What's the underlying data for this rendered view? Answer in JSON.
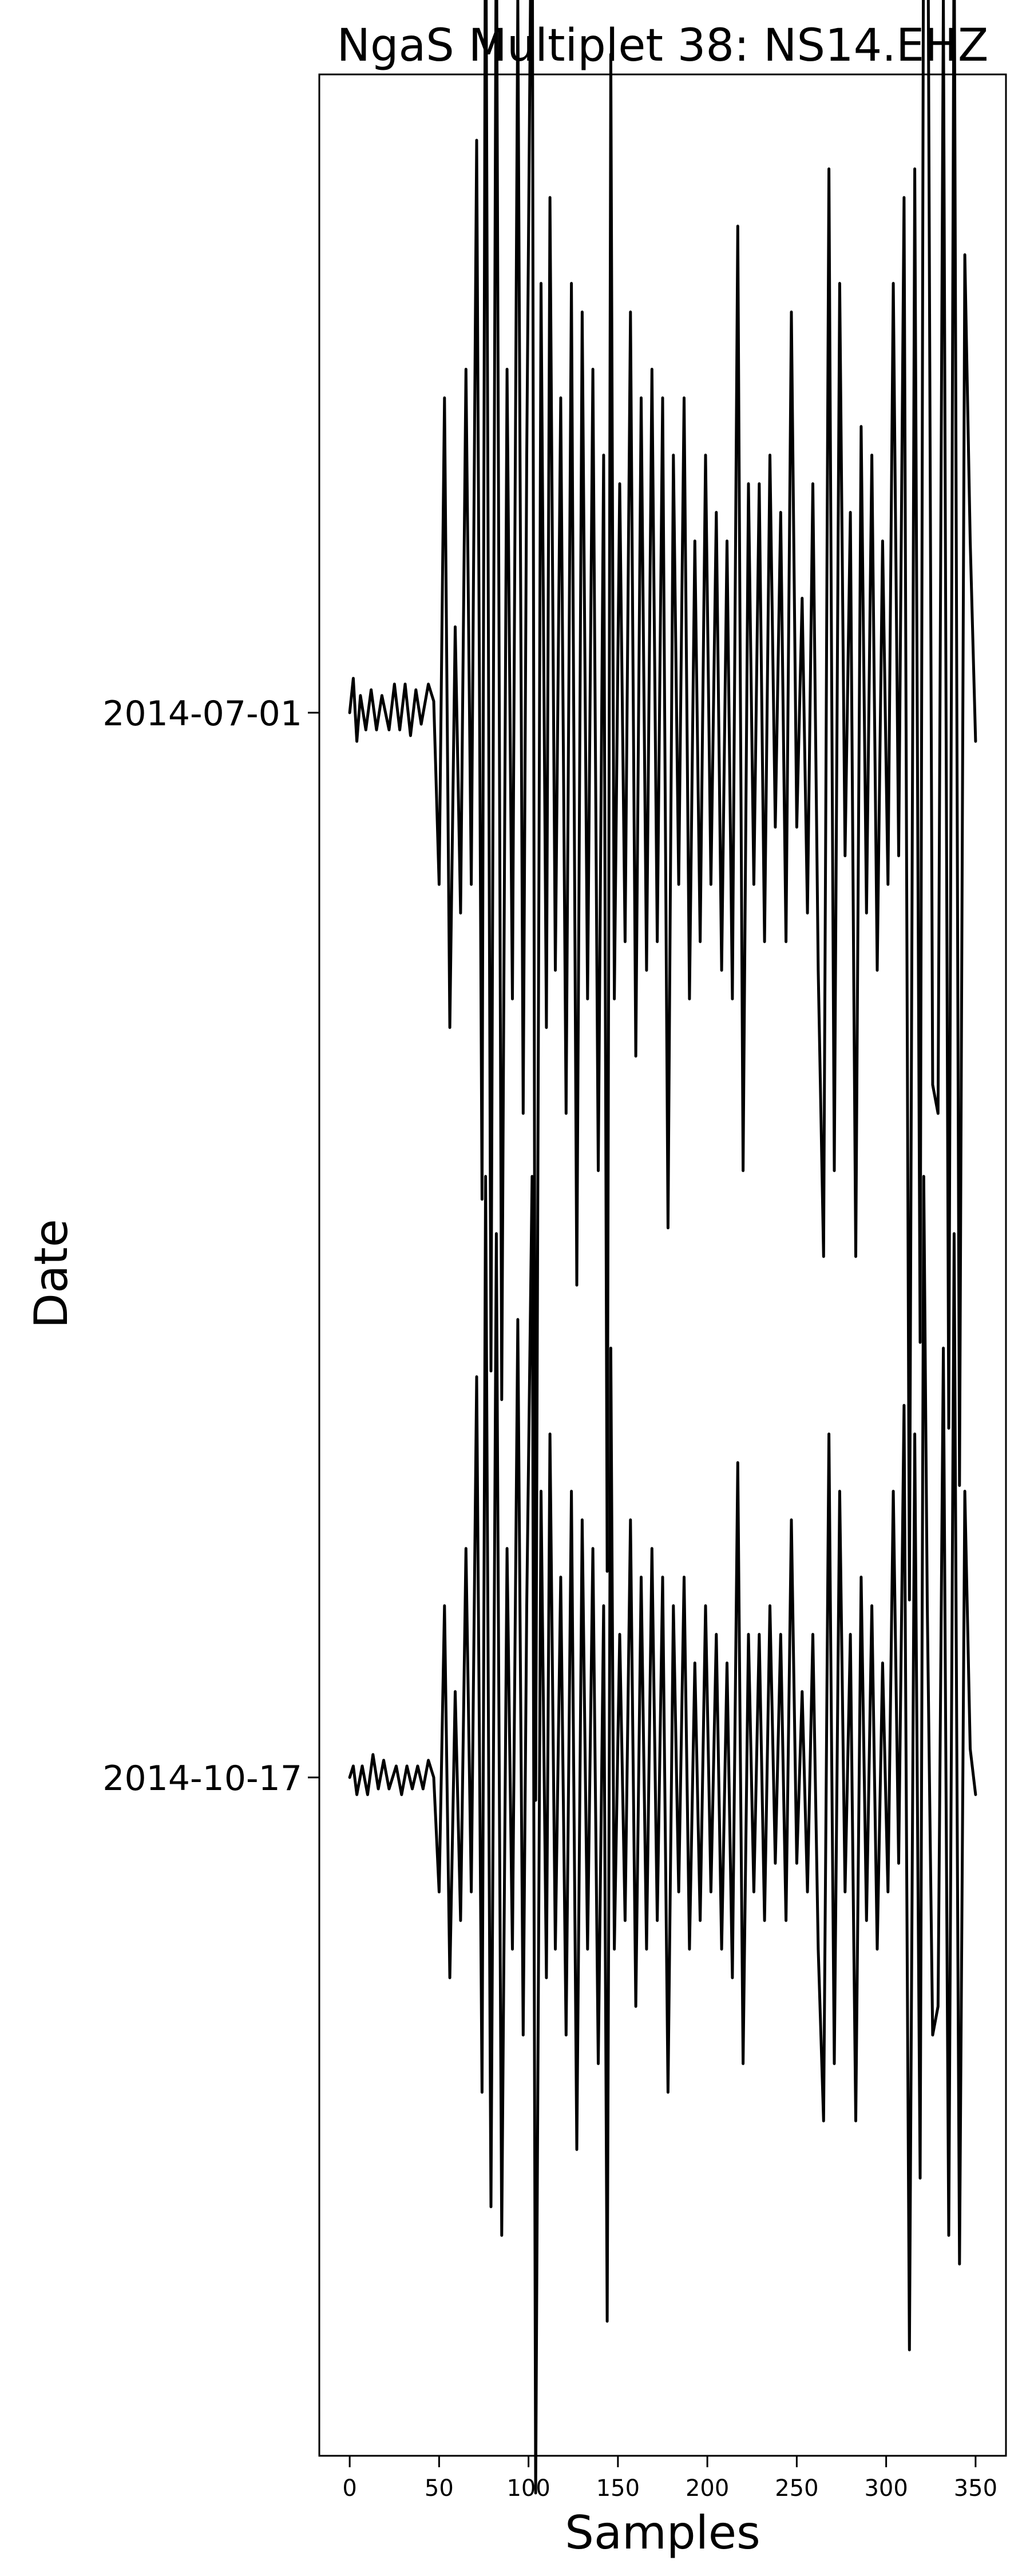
{
  "chart_data": {
    "type": "line",
    "title": "NgaS Multiplet 38: NS14.EHZ",
    "xlabel": "Samples",
    "ylabel": "Date",
    "xlim": [
      -17,
      367
    ],
    "xticks": [
      0,
      50,
      100,
      150,
      200,
      250,
      300,
      350
    ],
    "grid": false,
    "legend": "none",
    "line_color": "#000000",
    "series": [
      {
        "y_label": "2014-07-01",
        "n_samples": 350,
        "peaks": [
          [
            0,
            0.0
          ],
          [
            2,
            0.06
          ],
          [
            4,
            -0.05
          ],
          [
            6,
            0.03
          ],
          [
            9,
            -0.03
          ],
          [
            12,
            0.04
          ],
          [
            15,
            -0.03
          ],
          [
            18,
            0.03
          ],
          [
            22,
            -0.03
          ],
          [
            25,
            0.05
          ],
          [
            28,
            -0.03
          ],
          [
            31,
            0.05
          ],
          [
            34,
            -0.04
          ],
          [
            37,
            0.04
          ],
          [
            40,
            -0.02
          ],
          [
            44,
            0.05
          ],
          [
            47,
            0.02
          ],
          [
            50,
            -0.3
          ],
          [
            53,
            0.55
          ],
          [
            56,
            -0.55
          ],
          [
            59,
            0.15
          ],
          [
            62,
            -0.35
          ],
          [
            65,
            0.6
          ],
          [
            68,
            -0.3
          ],
          [
            71,
            1.0
          ],
          [
            74,
            -0.85
          ],
          [
            76,
            1.55
          ],
          [
            79,
            -1.15
          ],
          [
            82,
            1.45
          ],
          [
            85,
            -1.2
          ],
          [
            88,
            0.6
          ],
          [
            91,
            -0.5
          ],
          [
            94,
            1.25
          ],
          [
            97,
            -0.7
          ],
          [
            99,
            0.45
          ],
          [
            102,
            1.6
          ],
          [
            104,
            -1.9
          ],
          [
            107,
            0.75
          ],
          [
            110,
            -0.55
          ],
          [
            112,
            0.9
          ],
          [
            115,
            -0.45
          ],
          [
            118,
            0.55
          ],
          [
            121,
            -0.7
          ],
          [
            124,
            0.75
          ],
          [
            127,
            -1.0
          ],
          [
            130,
            0.7
          ],
          [
            133,
            -0.5
          ],
          [
            136,
            0.6
          ],
          [
            139,
            -0.8
          ],
          [
            142,
            0.45
          ],
          [
            144,
            -1.5
          ],
          [
            146,
            1.15
          ],
          [
            148,
            -0.5
          ],
          [
            151,
            0.4
          ],
          [
            154,
            -0.4
          ],
          [
            157,
            0.7
          ],
          [
            160,
            -0.6
          ],
          [
            163,
            0.55
          ],
          [
            166,
            -0.45
          ],
          [
            169,
            0.6
          ],
          [
            172,
            -0.4
          ],
          [
            175,
            0.55
          ],
          [
            178,
            -0.9
          ],
          [
            181,
            0.45
          ],
          [
            184,
            -0.3
          ],
          [
            187,
            0.55
          ],
          [
            190,
            -0.5
          ],
          [
            193,
            0.3
          ],
          [
            196,
            -0.4
          ],
          [
            199,
            0.45
          ],
          [
            202,
            -0.3
          ],
          [
            205,
            0.35
          ],
          [
            208,
            -0.45
          ],
          [
            211,
            0.3
          ],
          [
            214,
            -0.5
          ],
          [
            217,
            0.85
          ],
          [
            220,
            -0.8
          ],
          [
            223,
            0.4
          ],
          [
            226,
            -0.3
          ],
          [
            229,
            0.4
          ],
          [
            232,
            -0.4
          ],
          [
            235,
            0.45
          ],
          [
            238,
            -0.2
          ],
          [
            241,
            0.35
          ],
          [
            244,
            -0.4
          ],
          [
            247,
            0.7
          ],
          [
            250,
            -0.2
          ],
          [
            253,
            0.2
          ],
          [
            256,
            -0.35
          ],
          [
            259,
            0.4
          ],
          [
            262,
            -0.45
          ],
          [
            265,
            -0.95
          ],
          [
            268,
            0.95
          ],
          [
            271,
            -0.8
          ],
          [
            274,
            0.75
          ],
          [
            277,
            -0.25
          ],
          [
            280,
            0.35
          ],
          [
            283,
            -0.95
          ],
          [
            286,
            0.5
          ],
          [
            289,
            -0.35
          ],
          [
            292,
            0.45
          ],
          [
            295,
            -0.45
          ],
          [
            298,
            0.3
          ],
          [
            301,
            -0.3
          ],
          [
            304,
            0.75
          ],
          [
            307,
            -0.25
          ],
          [
            310,
            0.9
          ],
          [
            313,
            -1.55
          ],
          [
            316,
            0.95
          ],
          [
            319,
            -1.1
          ],
          [
            321,
            1.55
          ],
          [
            323,
            1.7
          ],
          [
            326,
            -0.65
          ],
          [
            329,
            -0.7
          ],
          [
            332,
            1.25
          ],
          [
            335,
            -1.25
          ],
          [
            338,
            1.4
          ],
          [
            341,
            -1.35
          ],
          [
            344,
            0.8
          ],
          [
            347,
            0.3
          ],
          [
            350,
            -0.05
          ]
        ]
      },
      {
        "y_label": "2014-10-17",
        "n_samples": 350,
        "peaks": [
          [
            0,
            0.0
          ],
          [
            2,
            0.02
          ],
          [
            4,
            -0.03
          ],
          [
            7,
            0.02
          ],
          [
            10,
            -0.03
          ],
          [
            13,
            0.04
          ],
          [
            16,
            -0.02
          ],
          [
            19,
            0.03
          ],
          [
            22,
            -0.02
          ],
          [
            26,
            0.02
          ],
          [
            29,
            -0.03
          ],
          [
            32,
            0.02
          ],
          [
            35,
            -0.02
          ],
          [
            38,
            0.02
          ],
          [
            41,
            -0.02
          ],
          [
            44,
            0.03
          ],
          [
            47,
            0.0
          ],
          [
            50,
            -0.2
          ],
          [
            53,
            0.3
          ],
          [
            56,
            -0.35
          ],
          [
            59,
            0.15
          ],
          [
            62,
            -0.25
          ],
          [
            65,
            0.4
          ],
          [
            68,
            -0.2
          ],
          [
            71,
            0.7
          ],
          [
            74,
            -0.55
          ],
          [
            76,
            1.05
          ],
          [
            79,
            -0.75
          ],
          [
            82,
            0.95
          ],
          [
            85,
            -0.8
          ],
          [
            88,
            0.4
          ],
          [
            91,
            -0.3
          ],
          [
            94,
            0.8
          ],
          [
            97,
            -0.45
          ],
          [
            99,
            0.3
          ],
          [
            102,
            1.05
          ],
          [
            104,
            -1.25
          ],
          [
            107,
            0.5
          ],
          [
            110,
            -0.35
          ],
          [
            112,
            0.6
          ],
          [
            115,
            -0.3
          ],
          [
            118,
            0.35
          ],
          [
            121,
            -0.45
          ],
          [
            124,
            0.5
          ],
          [
            127,
            -0.65
          ],
          [
            130,
            0.45
          ],
          [
            133,
            -0.3
          ],
          [
            136,
            0.4
          ],
          [
            139,
            -0.5
          ],
          [
            142,
            0.3
          ],
          [
            144,
            -0.95
          ],
          [
            146,
            0.75
          ],
          [
            148,
            -0.3
          ],
          [
            151,
            0.25
          ],
          [
            154,
            -0.25
          ],
          [
            157,
            0.45
          ],
          [
            160,
            -0.4
          ],
          [
            163,
            0.35
          ],
          [
            166,
            -0.3
          ],
          [
            169,
            0.4
          ],
          [
            172,
            -0.25
          ],
          [
            175,
            0.35
          ],
          [
            178,
            -0.55
          ],
          [
            181,
            0.3
          ],
          [
            184,
            -0.2
          ],
          [
            187,
            0.35
          ],
          [
            190,
            -0.3
          ],
          [
            193,
            0.2
          ],
          [
            196,
            -0.25
          ],
          [
            199,
            0.3
          ],
          [
            202,
            -0.2
          ],
          [
            205,
            0.25
          ],
          [
            208,
            -0.3
          ],
          [
            211,
            0.2
          ],
          [
            214,
            -0.35
          ],
          [
            217,
            0.55
          ],
          [
            220,
            -0.5
          ],
          [
            223,
            0.25
          ],
          [
            226,
            -0.2
          ],
          [
            229,
            0.25
          ],
          [
            232,
            -0.25
          ],
          [
            235,
            0.3
          ],
          [
            238,
            -0.15
          ],
          [
            241,
            0.25
          ],
          [
            244,
            -0.25
          ],
          [
            247,
            0.45
          ],
          [
            250,
            -0.15
          ],
          [
            253,
            0.15
          ],
          [
            256,
            -0.2
          ],
          [
            259,
            0.25
          ],
          [
            262,
            -0.3
          ],
          [
            265,
            -0.6
          ],
          [
            268,
            0.6
          ],
          [
            271,
            -0.5
          ],
          [
            274,
            0.5
          ],
          [
            277,
            -0.2
          ],
          [
            280,
            0.25
          ],
          [
            283,
            -0.6
          ],
          [
            286,
            0.35
          ],
          [
            289,
            -0.25
          ],
          [
            292,
            0.3
          ],
          [
            295,
            -0.3
          ],
          [
            298,
            0.2
          ],
          [
            301,
            -0.2
          ],
          [
            304,
            0.5
          ],
          [
            307,
            -0.15
          ],
          [
            310,
            0.65
          ],
          [
            313,
            -1.0
          ],
          [
            316,
            0.6
          ],
          [
            319,
            -0.7
          ],
          [
            321,
            1.05
          ],
          [
            323,
            0.3
          ],
          [
            326,
            -0.45
          ],
          [
            329,
            -0.4
          ],
          [
            332,
            0.75
          ],
          [
            335,
            -0.8
          ],
          [
            338,
            0.95
          ],
          [
            341,
            -0.85
          ],
          [
            344,
            0.5
          ],
          [
            347,
            0.05
          ],
          [
            350,
            -0.03
          ]
        ]
      }
    ]
  }
}
